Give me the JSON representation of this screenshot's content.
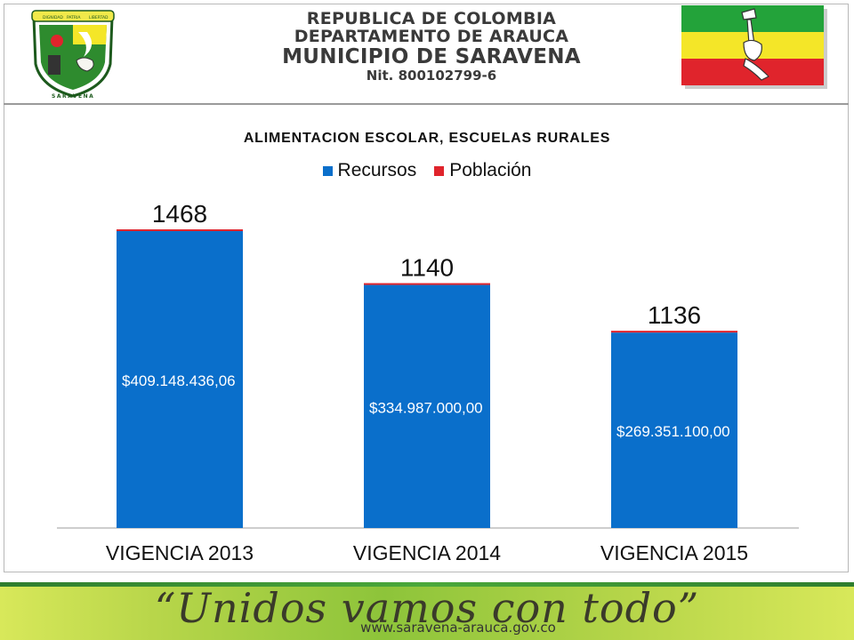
{
  "header": {
    "line1": "REPUBLICA DE COLOMBIA",
    "line2": "DEPARTAMENTO DE ARAUCA",
    "line3": "MUNICIPIO DE SARAVENA",
    "line4": "Nit. 800102799-6",
    "shield_top_words": [
      "DIGNIDAD",
      "PATRIA",
      "LIBERTAD"
    ],
    "shield_bottom_word": "SARAVENA",
    "colors": {
      "flag_green": "#23a33a",
      "flag_yellow": "#f4e628",
      "flag_red": "#e0242c"
    }
  },
  "chart_data": {
    "type": "bar",
    "title": "ALIMENTACION ESCOLAR, ESCUELAS RURALES",
    "legend": [
      {
        "name": "Recursos",
        "color": "#0a6fcb"
      },
      {
        "name": "Población",
        "color": "#e0242c"
      }
    ],
    "legend_position": "top-center",
    "categories": [
      "VIGENCIA 2013",
      "VIGENCIA 2014",
      "VIGENCIA 2015"
    ],
    "series": [
      {
        "name": "Recursos",
        "values": [
          409148436.06,
          334987000.0,
          269351100.0
        ],
        "labels": [
          "$409.148.436,06",
          "$334.987.000,00",
          "$269.351.100,00"
        ]
      },
      {
        "name": "Población",
        "values": [
          1468,
          1140,
          1136
        ],
        "labels": [
          "1468",
          "1140",
          "1136"
        ]
      }
    ],
    "stacked": true,
    "grid": false
  },
  "footer": {
    "slogan": "“Unidos vamos con todo”",
    "website": "www.saravena-arauca.gov.co"
  }
}
